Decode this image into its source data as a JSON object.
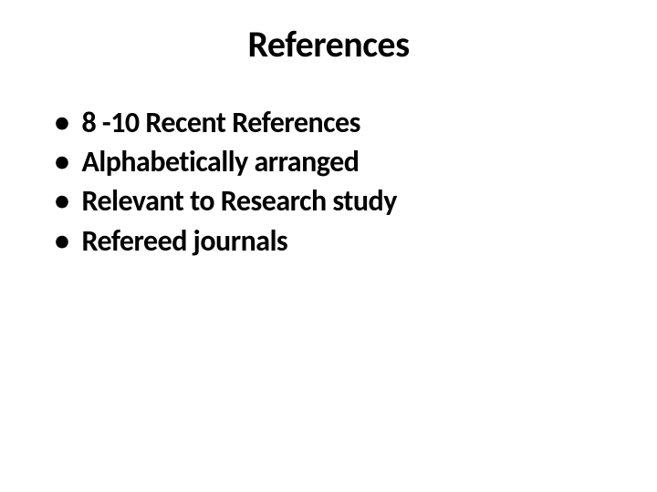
{
  "slide": {
    "title": "References",
    "bullets": [
      "8 -10 Recent References",
      "Alphabetically arranged",
      "Relevant to Research study",
      "Refereed journals"
    ],
    "styling": {
      "background_color": "#ffffff",
      "text_color": "#000000",
      "title_fontsize": 40,
      "title_fontweight": 700,
      "bullet_fontsize": 32,
      "bullet_fontweight": 700,
      "font_family": "Calibri, Arial, sans-serif",
      "bullet_marker": "•"
    }
  }
}
